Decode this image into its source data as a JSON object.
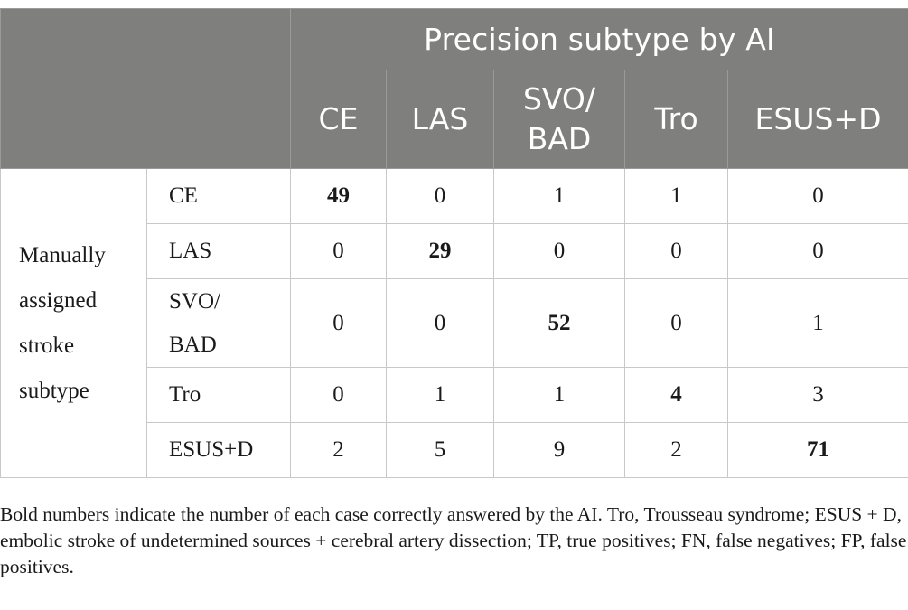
{
  "header": {
    "group_title": "Precision subtype by AI",
    "columns": [
      "CE",
      "LAS",
      "SVO/\nBAD",
      "Tro",
      "ESUS+D"
    ]
  },
  "row_group_label": "Manually\nassigned\nstroke\nsubtype",
  "rows": [
    {
      "label": "CE",
      "values": [
        "49",
        "0",
        "1",
        "1",
        "0"
      ],
      "diag": 0
    },
    {
      "label": "LAS",
      "values": [
        "0",
        "29",
        "0",
        "0",
        "0"
      ],
      "diag": 1
    },
    {
      "label": "SVO/\nBAD",
      "values": [
        "0",
        "0",
        "52",
        "0",
        "1"
      ],
      "diag": 2
    },
    {
      "label": "Tro",
      "values": [
        "0",
        "1",
        "1",
        "4",
        "3"
      ],
      "diag": 3
    },
    {
      "label": "ESUS+D",
      "values": [
        "2",
        "5",
        "9",
        "2",
        "71"
      ],
      "diag": 4
    }
  ],
  "footnote": "Bold numbers indicate the number of each case correctly answered by the AI. Tro, Trousseau syndrome; ESUS + D, embolic stroke of undetermined sources + cerebral artery dissection; TP, true positives; FN, false negatives; FP, false positives."
}
